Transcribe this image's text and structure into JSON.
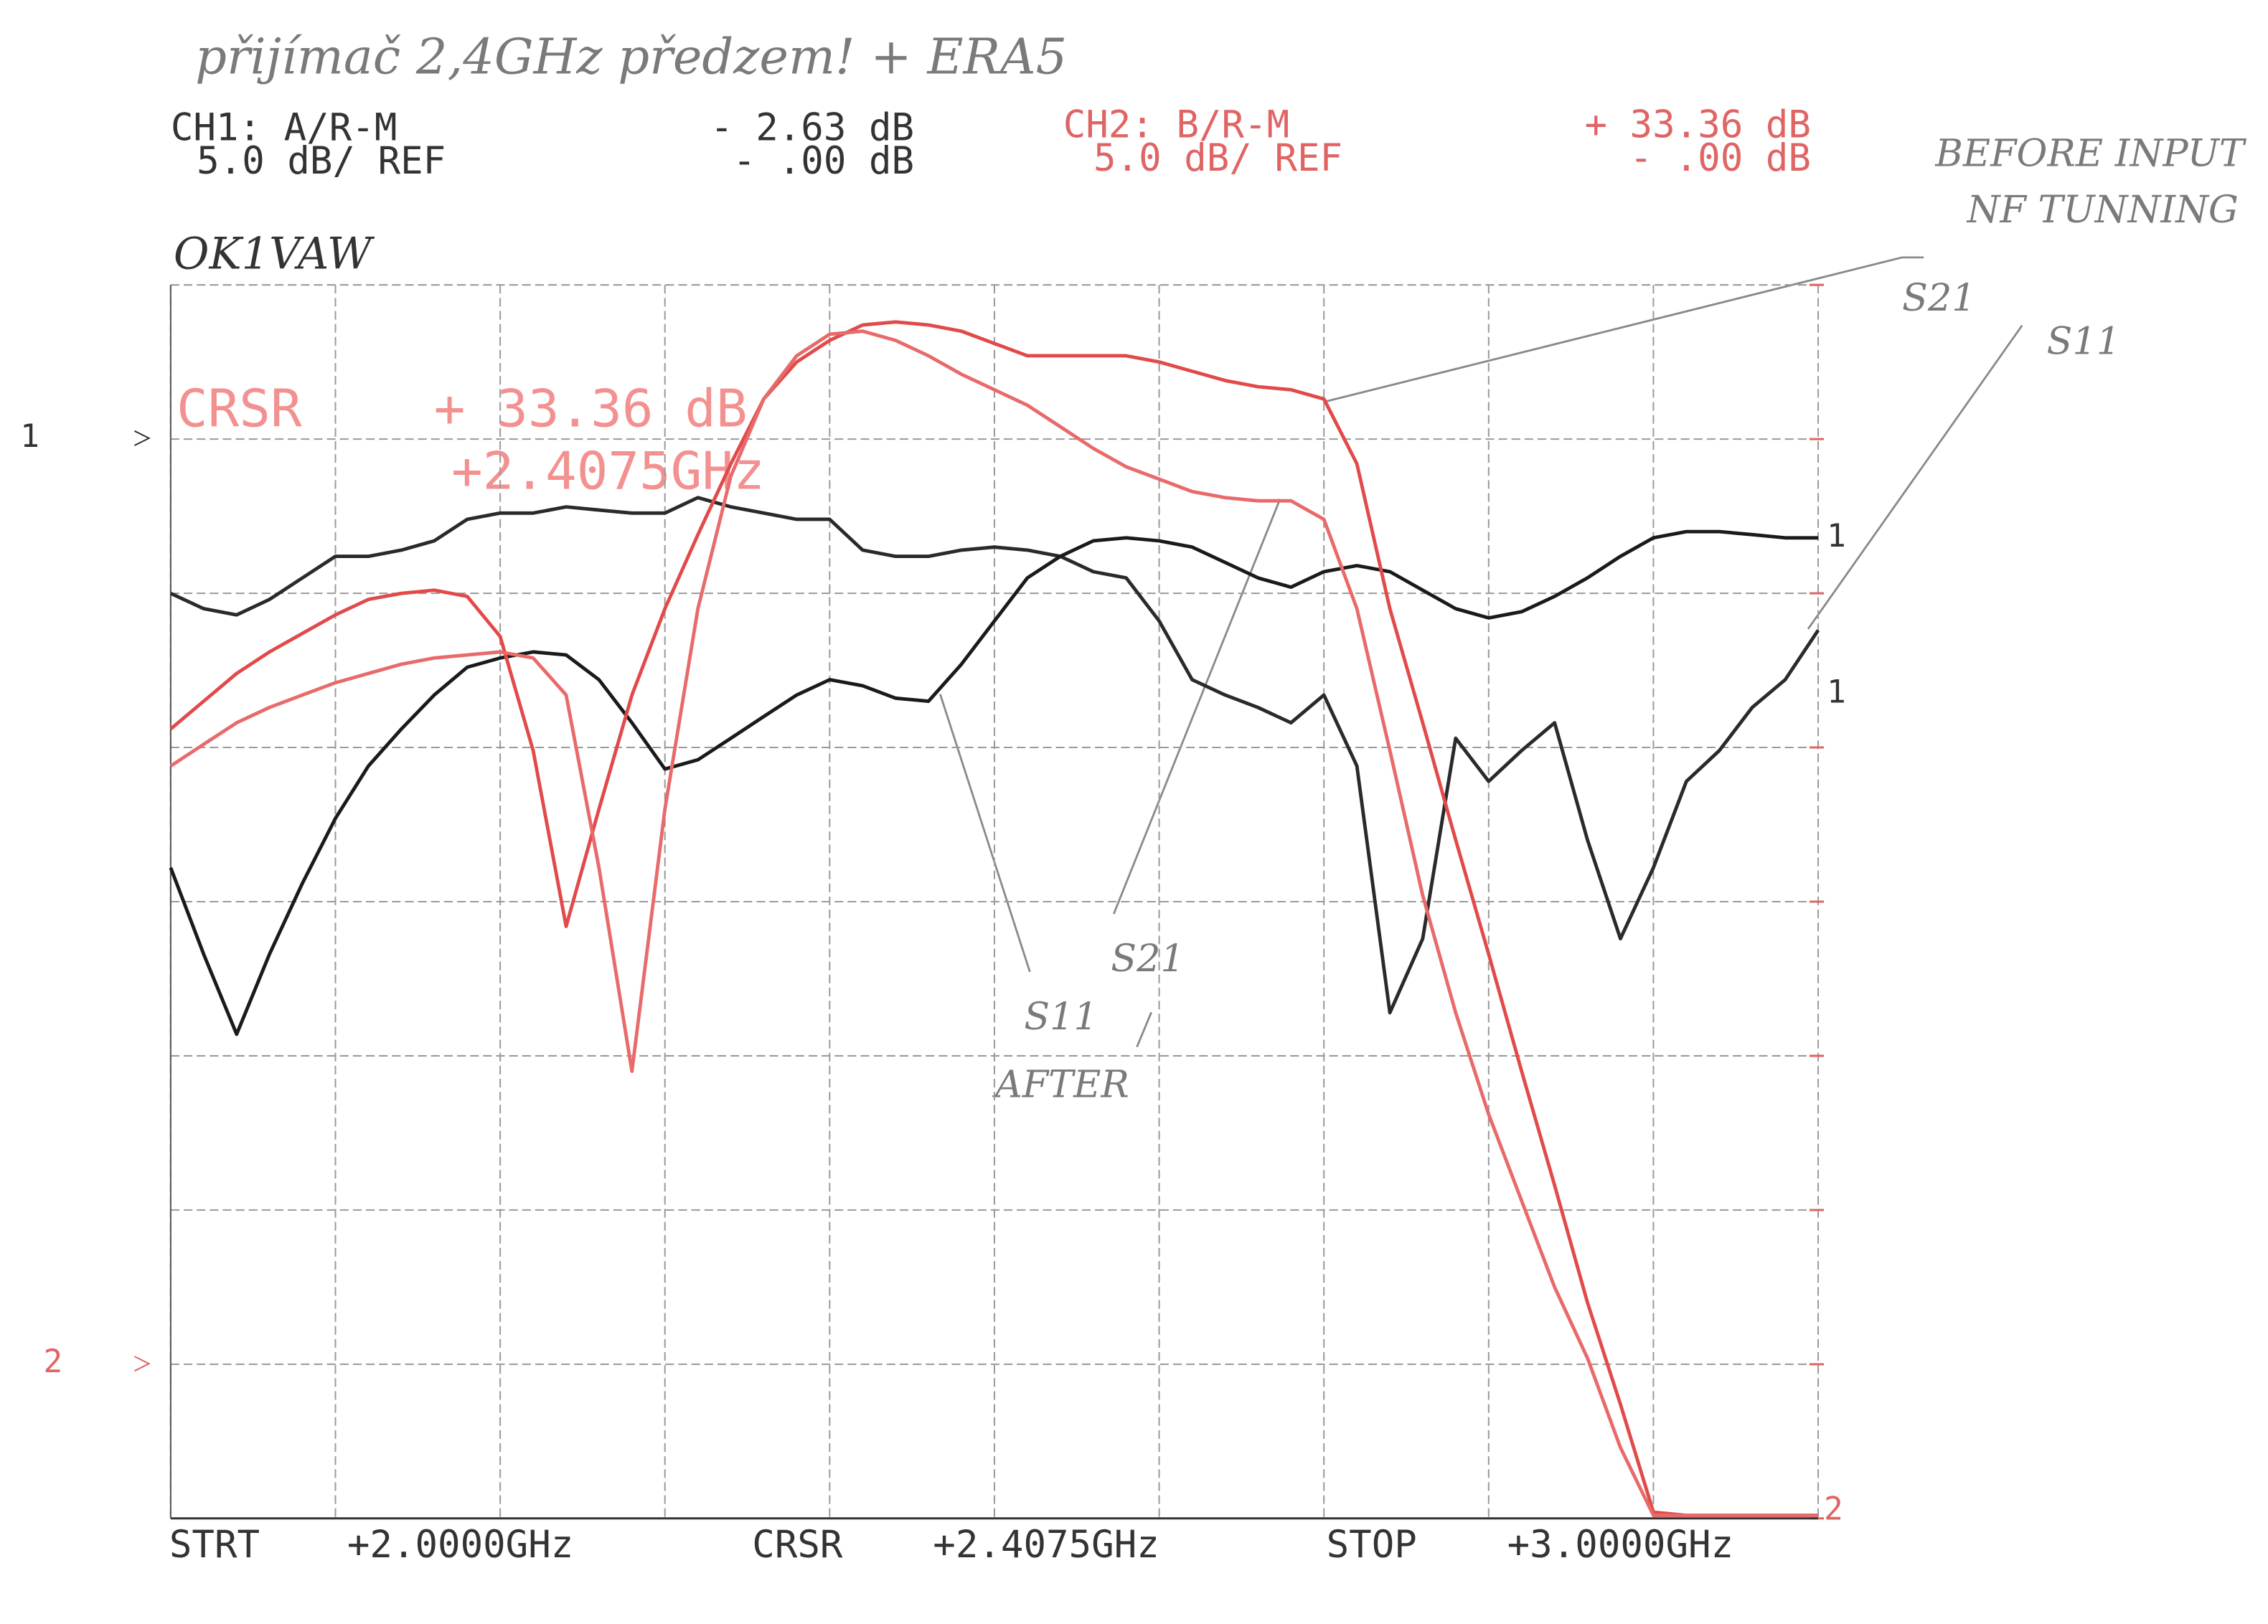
{
  "chart_data": {
    "type": "line",
    "title": "přijímač 2,4GHz předzem! + ERA5",
    "station": "OK1VAW",
    "ch1": {
      "label": "CH1:  A/R-M",
      "value": "- 2.63 dB",
      "scale": "5.0 dB/  REF",
      "ref_value": "- .00 dB"
    },
    "ch2": {
      "label": "CH2:  B/R-M",
      "value": "+ 33.36 dB",
      "scale": "5.0 dB/  REF",
      "ref_value": "- .00 dB"
    },
    "cursor": {
      "label": "CRSR",
      "value": "+ 33.36 dB",
      "freq": "+2.4075GHz"
    },
    "footer": {
      "start": "STRT",
      "start_freq": "+2.0000GHz",
      "cursor": "CRSR",
      "cursor_freq": "+2.4075GHz",
      "stop": "STOP",
      "stop_freq": "+3.0000GHz"
    },
    "ref_markers": [
      "1",
      "2"
    ],
    "trace_end_labels": [
      "1",
      "1",
      "2"
    ],
    "annotations": [
      "BEFORE INPUT",
      "NF TUNNING",
      "S21",
      "S11",
      "S21",
      "S11",
      "AFTER"
    ],
    "grid": true,
    "xlim": [
      2.0,
      3.0
    ],
    "xticks": [
      2.0,
      2.1,
      2.2,
      2.3,
      2.4,
      2.5,
      2.6,
      2.7,
      2.8,
      2.9,
      3.0
    ],
    "ylim": [
      -35,
      5
    ],
    "yticks": [
      -35,
      -30,
      -25,
      -20,
      -15,
      -10,
      -5,
      0,
      5
    ],
    "y2lim": [
      -5,
      35
    ],
    "y2ticks": [
      -5,
      0,
      5,
      10,
      15,
      20,
      25,
      30,
      35
    ],
    "x": [
      2.0,
      2.02,
      2.04,
      2.06,
      2.08,
      2.1,
      2.12,
      2.14,
      2.16,
      2.18,
      2.2,
      2.22,
      2.24,
      2.26,
      2.28,
      2.3,
      2.32,
      2.34,
      2.36,
      2.38,
      2.4,
      2.42,
      2.44,
      2.46,
      2.48,
      2.5,
      2.52,
      2.54,
      2.56,
      2.58,
      2.6,
      2.62,
      2.64,
      2.66,
      2.68,
      2.7,
      2.72,
      2.74,
      2.76,
      2.78,
      2.8,
      2.82,
      2.84,
      2.86,
      2.88,
      2.9,
      2.92,
      2.94,
      2.96,
      2.98,
      3.0
    ],
    "series": [
      {
        "color": "#2a2a2a",
        "values": [
          -5.0,
          -5.5,
          -5.7,
          -5.2,
          -4.5,
          -3.8,
          -3.8,
          -3.6,
          -3.3,
          -2.6,
          -2.4,
          -2.4,
          -2.2,
          -2.3,
          -2.4,
          -2.4,
          -1.9,
          -2.2,
          -2.4,
          -2.6,
          -2.6,
          -3.6,
          -3.8,
          -3.8,
          -3.6,
          -3.5,
          -3.6,
          -3.8,
          -4.3,
          -4.5,
          -5.9,
          -7.8,
          -8.3,
          -8.7,
          -9.2,
          -8.3,
          -10.6,
          -18.6,
          -16.2,
          -9.7,
          -11.1,
          -10.1,
          -9.2,
          -13.0,
          -16.2,
          -13.9,
          -11.1,
          -10.1,
          -8.7,
          -7.8,
          -6.2
        ]
      },
      {
        "color": "#1a1a1a",
        "values": [
          -13.9,
          -16.7,
          -19.3,
          -16.7,
          -14.4,
          -12.3,
          -10.6,
          -9.4,
          -8.3,
          -7.4,
          -7.1,
          -6.9,
          -7.0,
          -7.8,
          -9.2,
          -10.7,
          -10.4,
          -9.7,
          -9.0,
          -8.3,
          -7.8,
          -8.0,
          -8.4,
          -8.5,
          -7.3,
          -5.9,
          -4.5,
          -3.8,
          -3.3,
          -3.2,
          -3.3,
          -3.5,
          -4.0,
          -4.5,
          -4.8,
          -4.3,
          -4.1,
          -4.3,
          -4.9,
          -5.5,
          -5.8,
          -5.6,
          -5.1,
          -4.5,
          -3.8,
          -3.2,
          -3.0,
          -3.0,
          -3.1,
          -3.2,
          -3.2
        ]
      },
      {
        "color": "#e24a4a",
        "axis": "y2",
        "values": [
          20.6,
          21.5,
          22.4,
          23.1,
          23.7,
          24.3,
          24.8,
          25.0,
          25.1,
          24.9,
          23.6,
          19.9,
          14.2,
          18.0,
          21.7,
          24.5,
          26.9,
          29.2,
          31.3,
          32.5,
          33.2,
          33.7,
          33.8,
          33.7,
          33.5,
          33.1,
          32.7,
          32.7,
          32.7,
          32.7,
          32.5,
          32.2,
          31.9,
          31.7,
          31.6,
          31.3,
          29.2,
          24.5,
          20.8,
          17.0,
          13.3,
          9.5,
          5.8,
          2.0,
          -1.3,
          -4.8,
          -4.9,
          -4.9,
          -4.9,
          -4.9,
          -4.9
        ]
      },
      {
        "color": "#e86a6a",
        "axis": "y2",
        "values": [
          19.4,
          20.1,
          20.8,
          21.3,
          21.7,
          22.1,
          22.4,
          22.7,
          22.9,
          23.0,
          23.1,
          22.9,
          21.7,
          16.1,
          9.5,
          18.0,
          24.5,
          28.8,
          31.3,
          32.7,
          33.4,
          33.5,
          33.2,
          32.7,
          32.1,
          31.6,
          31.1,
          30.4,
          29.7,
          29.1,
          28.7,
          28.3,
          28.1,
          28.0,
          28.0,
          27.4,
          24.5,
          19.9,
          15.2,
          11.4,
          8.1,
          5.3,
          2.5,
          0.2,
          -2.7,
          -4.9,
          -4.9,
          -4.9,
          -4.9,
          -4.9,
          -4.9
        ]
      }
    ]
  }
}
